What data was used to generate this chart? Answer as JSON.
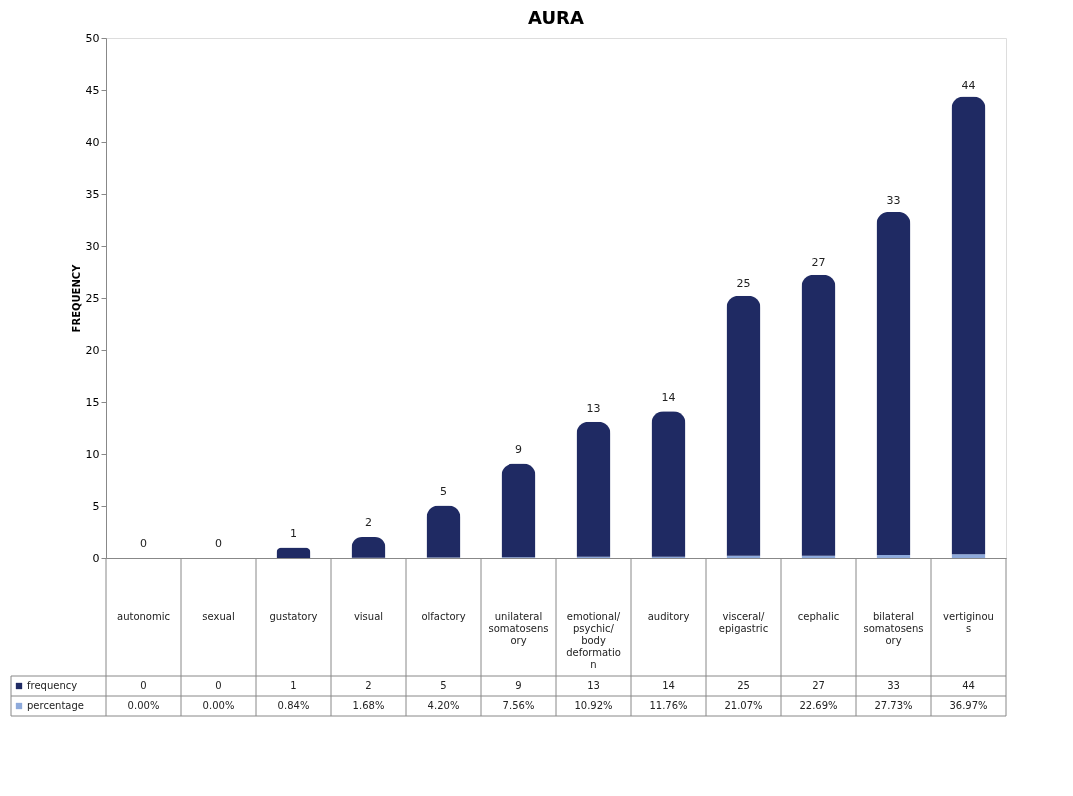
{
  "chart_data": {
    "type": "bar",
    "title": "AURA",
    "ylabel": "FREQUENCY",
    "categories": [
      "autonomic",
      "sexual",
      "gustatory",
      "visual",
      "olfactory",
      "unilateral somatosensory",
      "emotional/psychic/body deformation",
      "auditory",
      "visceral/epigastric",
      "cephalic",
      "bilateral somatosensory",
      "vertiginous"
    ],
    "stacked": true,
    "series": [
      {
        "name": "percentage",
        "color": "#8eaadb",
        "values": [
          0,
          0,
          0.0084,
          0.0168,
          0.042,
          0.0756,
          0.1092,
          0.1176,
          0.2107,
          0.2269,
          0.2773,
          0.3697
        ],
        "value_labels": [
          "0.00%",
          "0.00%",
          "0.84%",
          "1.68%",
          "4.20%",
          "7.56%",
          "10.92%",
          "11.76%",
          "21.07%",
          "22.69%",
          "27.73%",
          "36.97%"
        ]
      },
      {
        "name": "frequency",
        "color": "#1f2a63",
        "values": [
          0,
          0,
          1,
          2,
          5,
          9,
          13,
          14,
          25,
          27,
          33,
          44
        ]
      }
    ],
    "ylim": [
      0,
      50
    ],
    "yticks": [
      0,
      5,
      10,
      15,
      20,
      25,
      30,
      35,
      40,
      45,
      50
    ],
    "grid": false,
    "legend": "bottom",
    "data_labels": true,
    "annotations": [
      {
        "text": "0",
        "x": "autonomic",
        "y": 0
      },
      {
        "text": "0",
        "x": "sexual",
        "y": 0
      },
      {
        "text": "1",
        "x": "gustatory",
        "y": 1
      },
      {
        "text": "2",
        "x": "visual",
        "y": 2
      },
      {
        "text": "5",
        "x": "olfactory",
        "y": 5
      },
      {
        "text": "9",
        "x": "unilateral somatosensory",
        "y": 9
      },
      {
        "text": "13",
        "x": "emotional/psychic/body deformation",
        "y": 13
      },
      {
        "text": "14",
        "x": "auditory",
        "y": 14
      },
      {
        "text": "25",
        "x": "visceral/epigastric",
        "y": 25
      },
      {
        "text": "27",
        "x": "cephalic",
        "y": 27
      },
      {
        "text": "33",
        "x": "bilateral somatosensory",
        "y": 33
      },
      {
        "text": "44",
        "x": "vertiginous",
        "y": 44
      }
    ]
  }
}
